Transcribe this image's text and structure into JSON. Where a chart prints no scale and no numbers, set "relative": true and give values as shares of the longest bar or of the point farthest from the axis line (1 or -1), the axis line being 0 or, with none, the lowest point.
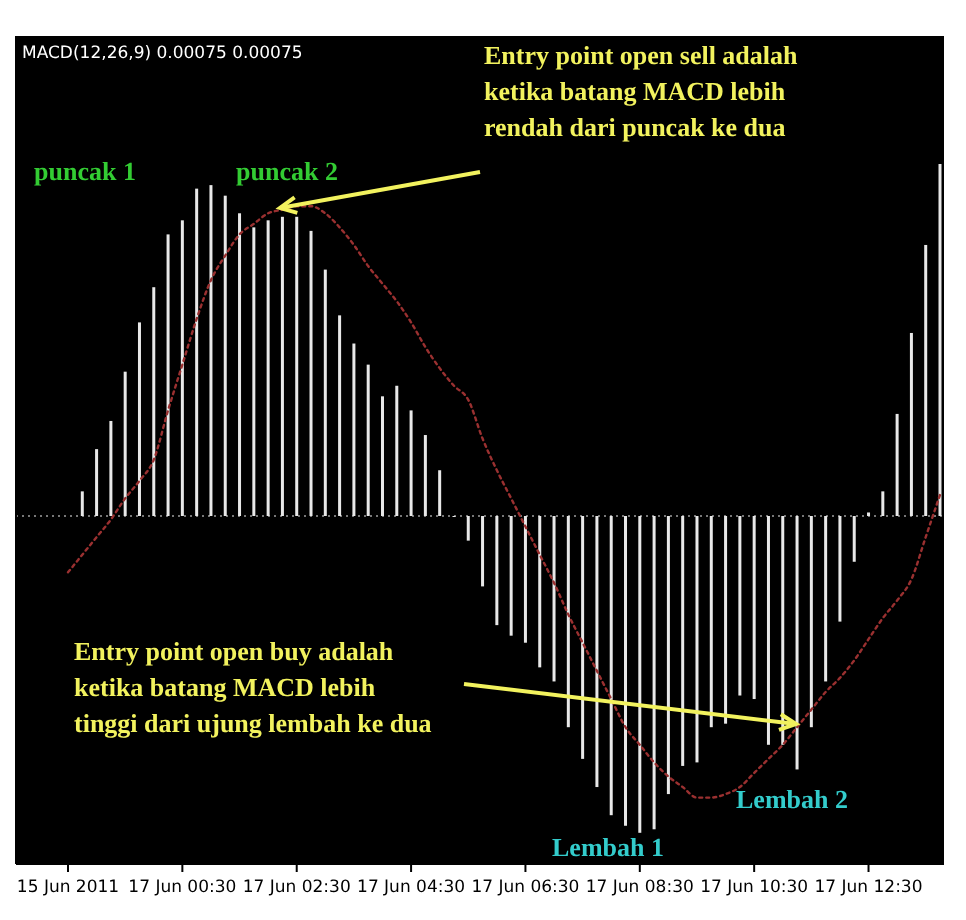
{
  "chart_data": {
    "type": "bar",
    "title": "MACD(12,26,9) 0.00075 0.00075",
    "relative": true,
    "categories": [
      "15 Jun 2011",
      null,
      null,
      null,
      null,
      null,
      null,
      null,
      "17 Jun 00:30",
      null,
      null,
      null,
      null,
      null,
      null,
      null,
      "17 Jun 02:30",
      null,
      null,
      null,
      null,
      null,
      null,
      null,
      "17 Jun 04:30",
      null,
      null,
      null,
      null,
      null,
      null,
      null,
      "17 Jun 06:30",
      null,
      null,
      null,
      null,
      null,
      null,
      null,
      "17 Jun 08:30",
      null,
      null,
      null,
      null,
      null,
      null,
      null,
      "17 Jun 10:30",
      null,
      null,
      null,
      null,
      null,
      null,
      null,
      "17 Jun 12:30",
      null,
      null,
      null,
      null,
      null
    ],
    "series": [
      {
        "color": "#e8e8e8",
        "values": [
          null,
          0.07,
          0.19,
          0.27,
          0.41,
          0.55,
          0.65,
          0.8,
          0.84,
          0.93,
          0.94,
          0.91,
          0.86,
          0.82,
          0.84,
          0.85,
          0.85,
          0.81,
          0.7,
          0.57,
          0.49,
          0.43,
          0.34,
          0.37,
          0.3,
          0.23,
          0.13,
          0,
          -0.07,
          -0.2,
          -0.31,
          -0.34,
          -0.36,
          -0.43,
          -0.47,
          -0.6,
          -0.69,
          -0.77,
          -0.85,
          -0.88,
          -0.9,
          -0.89,
          -0.79,
          -0.71,
          -0.7,
          -0.6,
          -0.59,
          -0.51,
          -0.52,
          -0.65,
          -0.65,
          -0.72,
          -0.6,
          -0.47,
          -0.3,
          -0.13,
          0.01,
          0.07,
          0.29,
          0.52,
          0.77,
          1
        ]
      },
      {
        "type": "line",
        "color": "#9a3030",
        "line_style": "dotted",
        "values": [
          -0.16,
          -0.11,
          -0.06,
          -0.01,
          0.05,
          0.1,
          0.16,
          0.3,
          0.43,
          0.56,
          0.67,
          0.74,
          0.8,
          0.83,
          0.86,
          0.87,
          0.88,
          0.88,
          0.86,
          0.82,
          0.77,
          0.71,
          0.66,
          0.61,
          0.55,
          0.48,
          0.42,
          0.37,
          0.33,
          0.22,
          0.13,
          0.05,
          -0.03,
          -0.11,
          -0.19,
          -0.28,
          -0.36,
          -0.44,
          -0.52,
          -0.6,
          -0.65,
          -0.7,
          -0.74,
          -0.77,
          -0.8,
          -0.8,
          -0.79,
          -0.77,
          -0.73,
          -0.69,
          -0.65,
          -0.6,
          -0.55,
          -0.5,
          -0.46,
          -0.41,
          -0.35,
          -0.29,
          -0.24,
          -0.18,
          -0.06,
          0.06
        ]
      }
    ],
    "ref_lines": [
      {
        "axis": "y",
        "value": 0,
        "color": "#777777",
        "line_style": "dotted"
      }
    ],
    "annotations": [
      "Entry point open sell adalah\nketika batang MACD lebih\nrendah dari puncak ke dua",
      "Entry point open buy adalah\nketika batang MACD lebih\ntinggi dari ujung lembah ke dua",
      "puncak 1",
      "puncak 2",
      "Lembah 1",
      "Lembah 2"
    ]
  }
}
